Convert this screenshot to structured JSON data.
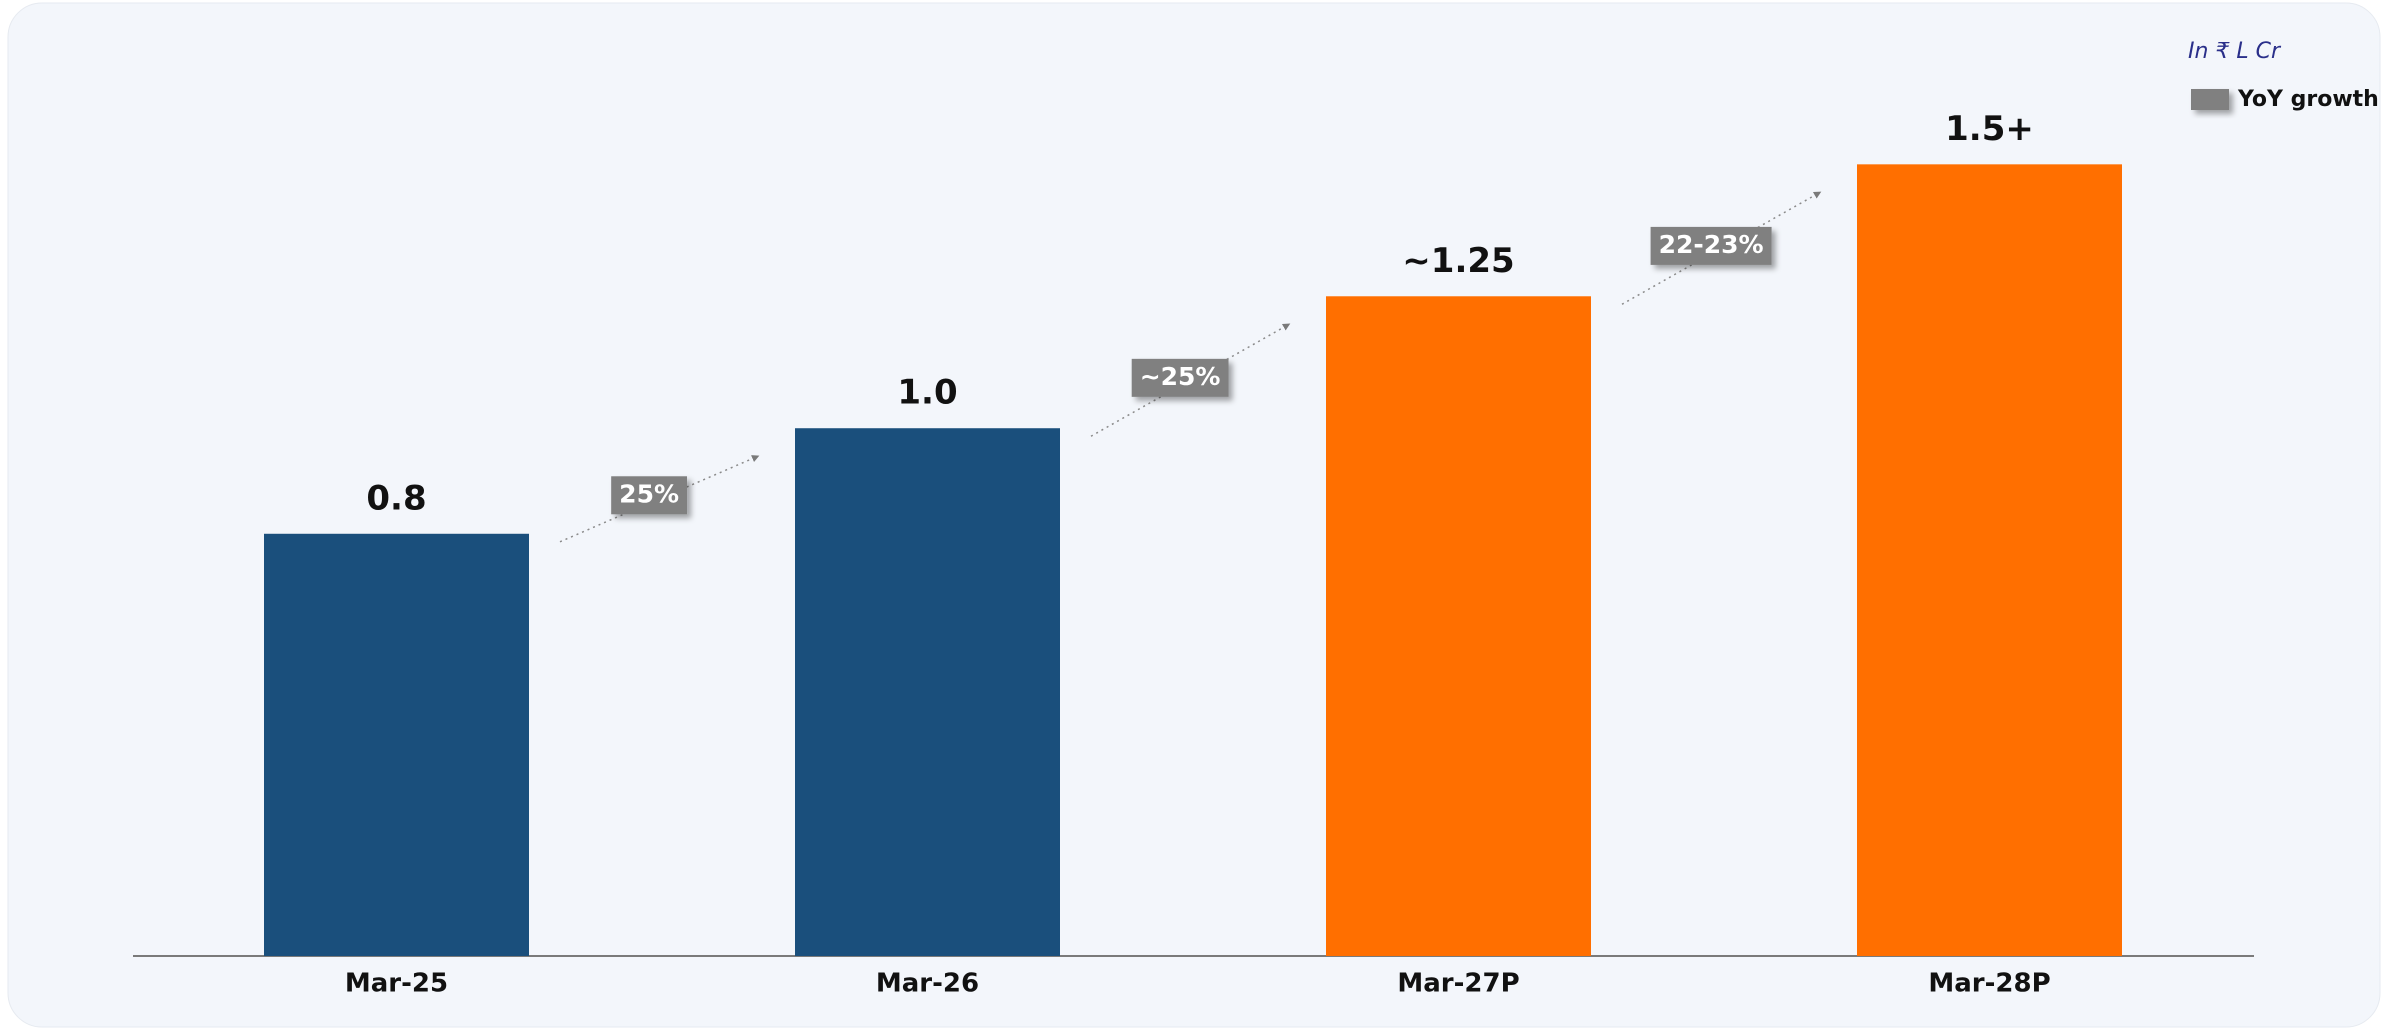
{
  "chart_data": {
    "type": "bar",
    "unit_note": "In ₹ L Cr",
    "categories": [
      "Mar-25",
      "Mar-26",
      "Mar-27P",
      "Mar-28P"
    ],
    "values": [
      0.8,
      1.0,
      1.25,
      1.5
    ],
    "value_labels": [
      "0.8",
      "1.0",
      "~1.25",
      "1.5+"
    ],
    "colors": [
      "#1a4f7c",
      "#1a4f7c",
      "#ff6f00",
      "#ff6f00"
    ],
    "growth_labels": [
      "25%",
      "~25%",
      "22-23%"
    ],
    "legend": {
      "name": "YoY growth",
      "color": "#808080"
    },
    "ylim": [
      0,
      1.8
    ]
  }
}
